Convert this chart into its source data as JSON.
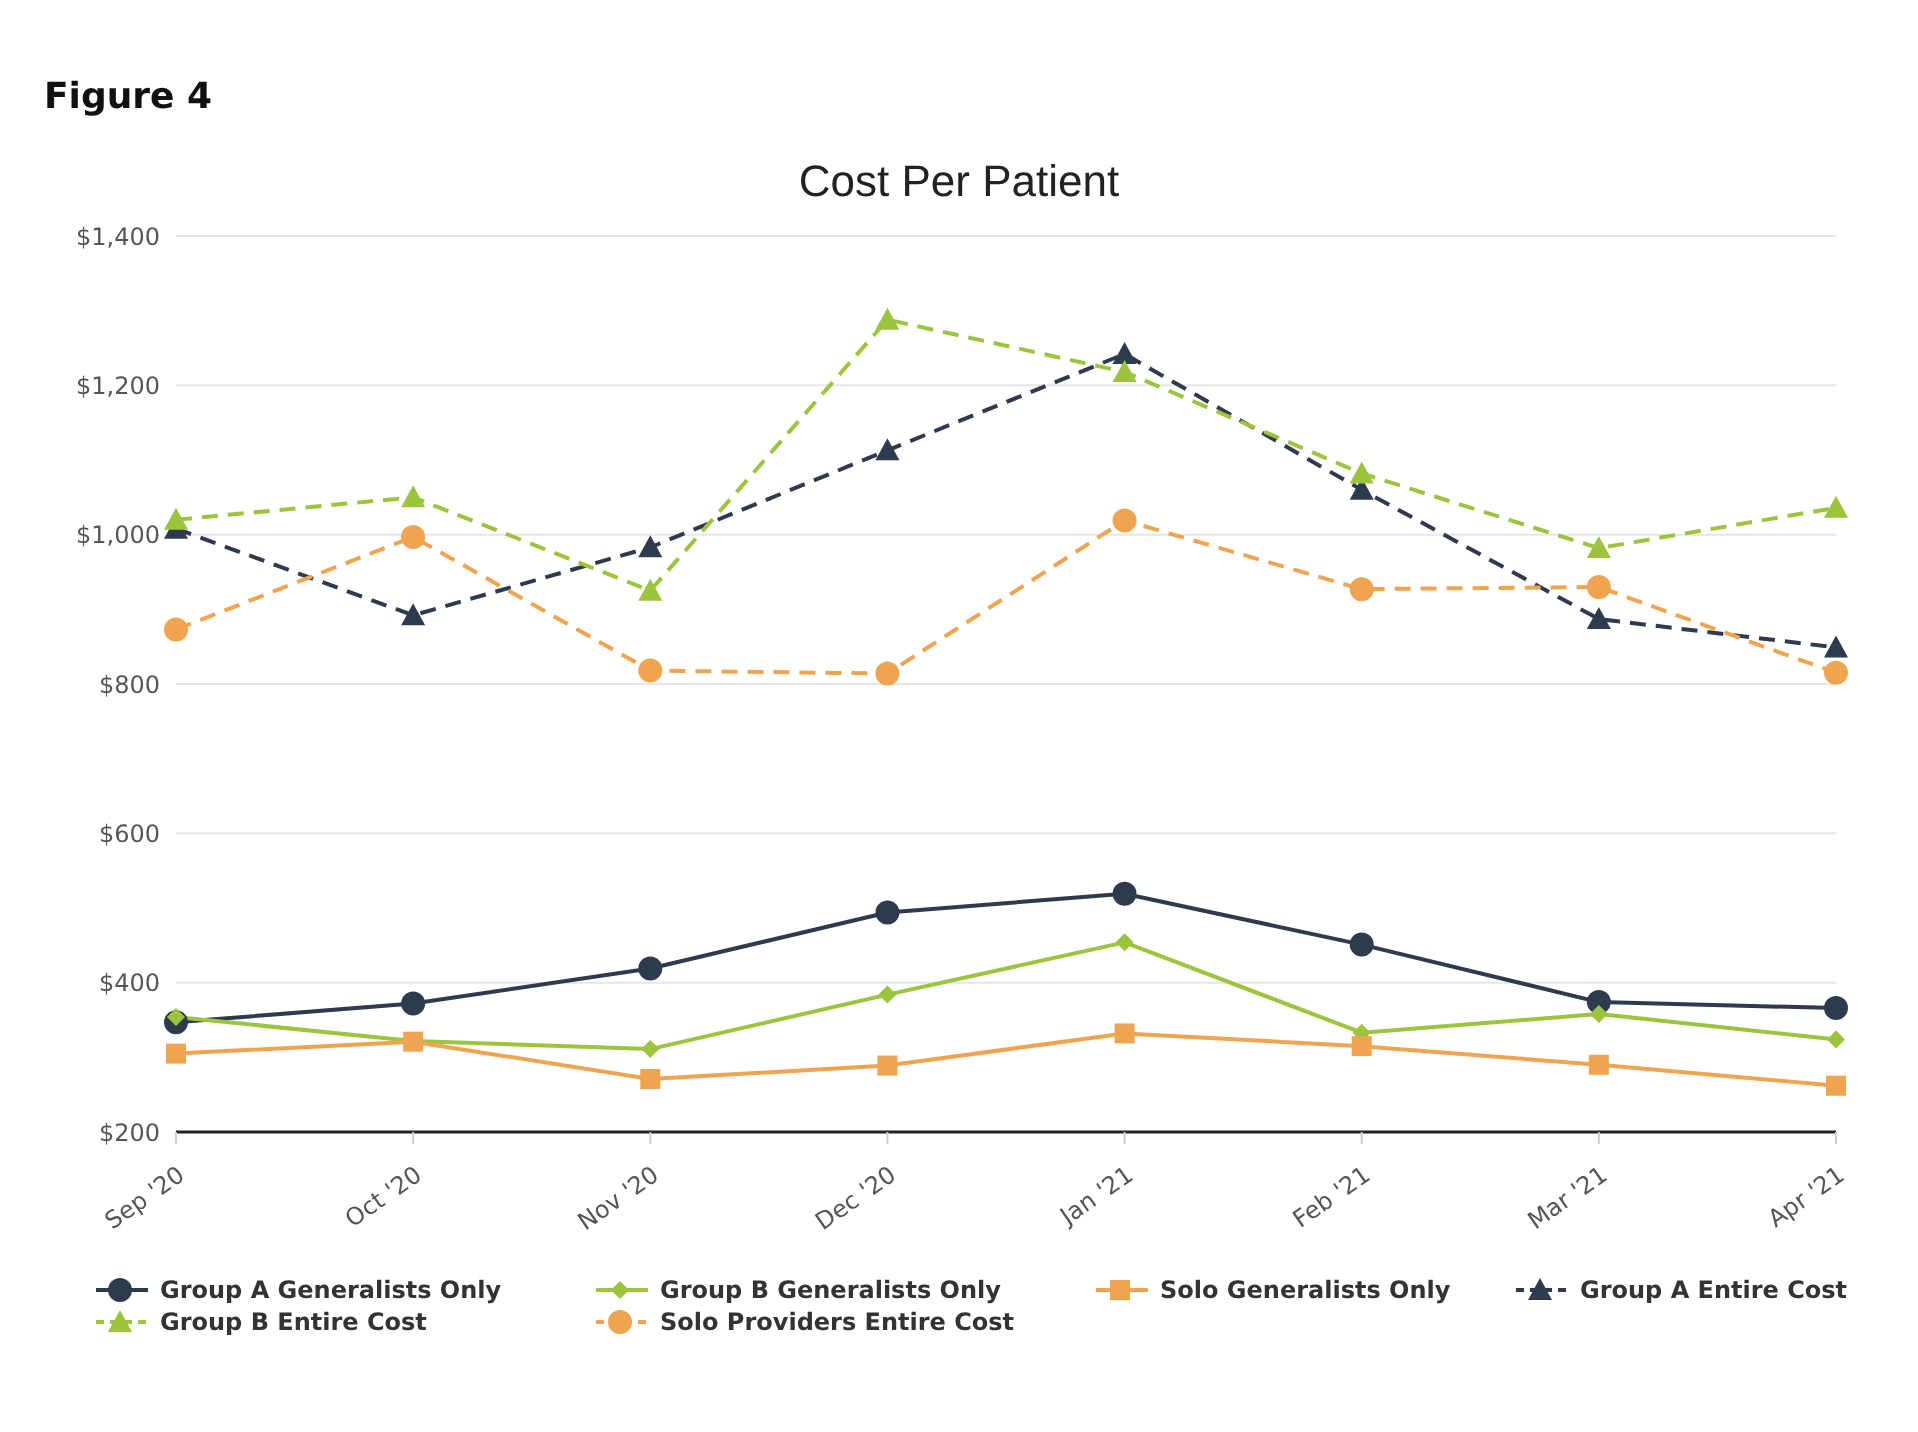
{
  "chart_data": {
    "type": "line",
    "title": "Cost Per Patient",
    "annotations": [
      "Figure 4"
    ],
    "categories": [
      "Sep '20",
      "Oct '20",
      "Nov '20",
      "Dec '20",
      "Jan '21",
      "Feb '21",
      "Mar '21",
      "Apr '21"
    ],
    "series": [
      {
        "name": "Group A Generalists Only",
        "color": "#2e3a4e",
        "marker": "circle",
        "line_style": "solid",
        "values": [
          347,
          372,
          419,
          494,
          519,
          451,
          374,
          366
        ]
      },
      {
        "name": "Group B Generalists Only",
        "color": "#9bc53d",
        "marker": "diamond",
        "line_style": "solid",
        "values": [
          354,
          322,
          311,
          384,
          454,
          333,
          358,
          324
        ]
      },
      {
        "name": "Solo Generalists Only",
        "color": "#f0a450",
        "marker": "square",
        "line_style": "solid",
        "values": [
          305,
          321,
          271,
          289,
          332,
          315,
          290,
          262
        ]
      },
      {
        "name": "Group A Entire Cost",
        "color": "#2e3a4e",
        "marker": "triangle",
        "line_style": "dashed",
        "values": [
          1008,
          892,
          983,
          1113,
          1242,
          1060,
          887,
          849
        ]
      },
      {
        "name": "Group B Entire Cost",
        "color": "#9bc53d",
        "marker": "triangle",
        "line_style": "dashed",
        "values": [
          1020,
          1050,
          925,
          1288,
          1218,
          1082,
          982,
          1036
        ]
      },
      {
        "name": "Solo Providers Entire Cost",
        "color": "#f0a450",
        "marker": "circle",
        "line_style": "dashed",
        "values": [
          873,
          997,
          818,
          814,
          1019,
          927,
          930,
          815
        ]
      }
    ],
    "ylim": [
      200,
      1400
    ],
    "yticks": [
      {
        "value": 200,
        "label": "$200"
      },
      {
        "value": 400,
        "label": "$400"
      },
      {
        "value": 600,
        "label": "$600"
      },
      {
        "value": 800,
        "label": "$800"
      },
      {
        "value": 1000,
        "label": "$1,000"
      },
      {
        "value": 1200,
        "label": "$1,200"
      },
      {
        "value": 1400,
        "label": "$1,400"
      }
    ],
    "grid": "y",
    "legend": "bottom"
  }
}
